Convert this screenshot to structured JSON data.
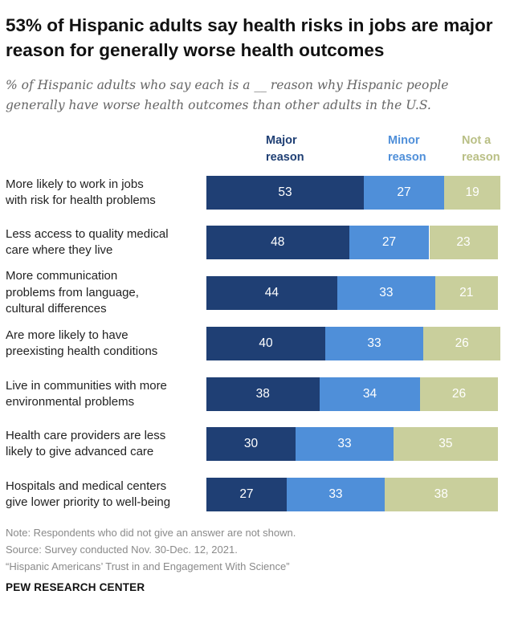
{
  "title": "53% of Hispanic adults say health risks in jobs are major reason for generally worse health outcomes",
  "subtitle": "% of Hispanic adults who say each is a __ reason why Hispanic people generally have worse health outcomes than other adults in the U.S.",
  "legend": {
    "major": [
      "Major",
      "reason"
    ],
    "minor": [
      "Minor",
      "reason"
    ],
    "not": [
      "Not a",
      "reason"
    ]
  },
  "colors": {
    "major": "#1f3f74",
    "minor": "#4f8fd9",
    "not": "#c9cf9c",
    "legend_major": "#1f3f74",
    "legend_minor": "#4f8fd9",
    "legend_not": "#c9cf9c"
  },
  "chart_data": {
    "type": "bar",
    "orientation": "horizontal-stacked",
    "categories": [
      "More likely to work in jobs with risk for health problems",
      "Less access to quality medical care where they live",
      "More communication problems from language, cultural differences",
      "Are more likely to have preexisting health conditions",
      "Live in communities with more environmental problems",
      "Health care providers are less likely to give advanced care",
      "Hospitals and medical centers give lower priority to well-being"
    ],
    "category_lines": [
      [
        "More likely to work in jobs",
        "with risk for health problems"
      ],
      [
        "Less access to quality medical",
        "care where they live"
      ],
      [
        "More communication",
        "problems from language,",
        "cultural differences"
      ],
      [
        "Are more likely to have",
        "preexisting health conditions"
      ],
      [
        "Live in communities with more",
        "environmental problems"
      ],
      [
        "Health care providers are less",
        "likely to give advanced care"
      ],
      [
        "Hospitals and medical centers",
        "give lower priority to well-being"
      ]
    ],
    "series": [
      {
        "name": "Major reason",
        "values": [
          53,
          48,
          44,
          40,
          38,
          30,
          27
        ]
      },
      {
        "name": "Minor reason",
        "values": [
          27,
          27,
          33,
          33,
          34,
          33,
          33
        ]
      },
      {
        "name": "Not a reason",
        "values": [
          19,
          23,
          21,
          26,
          26,
          35,
          38
        ]
      }
    ]
  },
  "footer": {
    "note": "Note: Respondents who did not give an answer are not shown.",
    "source": "Source: Survey conducted Nov. 30-Dec. 12, 2021.",
    "report": "“Hispanic Americans’ Trust in and Engagement With Science”"
  },
  "brand": "PEW RESEARCH CENTER"
}
